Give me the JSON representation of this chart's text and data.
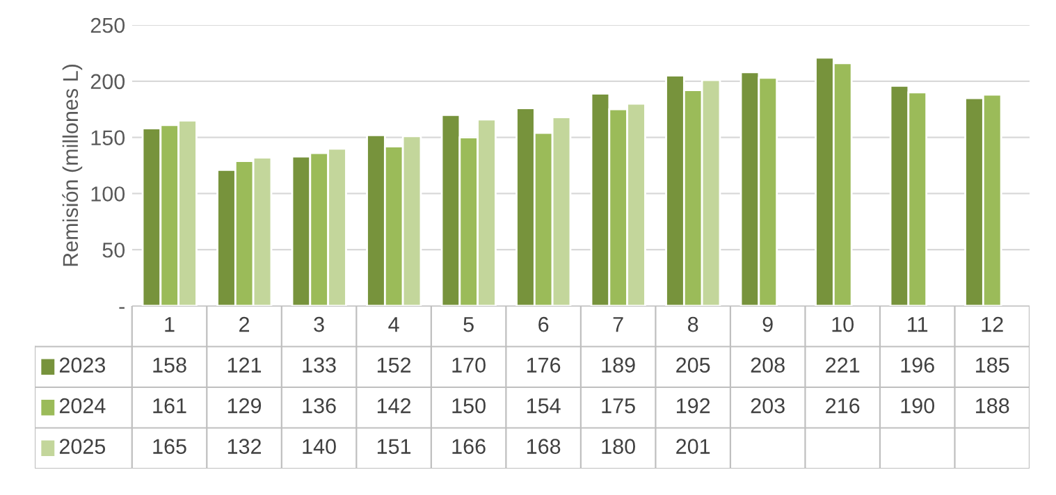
{
  "chart_data": {
    "type": "bar",
    "ylabel": "Remisión (millones L)",
    "categories": [
      "1",
      "2",
      "3",
      "4",
      "5",
      "6",
      "7",
      "8",
      "9",
      "10",
      "11",
      "12"
    ],
    "series": [
      {
        "name": "2023",
        "color": "#77933c",
        "values": [
          158,
          121,
          133,
          152,
          170,
          176,
          189,
          205,
          208,
          221,
          196,
          185
        ]
      },
      {
        "name": "2024",
        "color": "#9bbb59",
        "values": [
          161,
          129,
          136,
          142,
          150,
          154,
          175,
          192,
          203,
          216,
          190,
          188
        ]
      },
      {
        "name": "2025",
        "color": "#c3d69b",
        "values": [
          165,
          132,
          140,
          151,
          166,
          168,
          180,
          201,
          null,
          null,
          null,
          null
        ]
      }
    ],
    "ylim": [
      0,
      250
    ],
    "yticks": [
      {
        "value": 0,
        "label": "-"
      },
      50,
      100,
      150,
      200,
      250
    ],
    "grid": "y",
    "legend": "bottom",
    "data_labels": true
  }
}
